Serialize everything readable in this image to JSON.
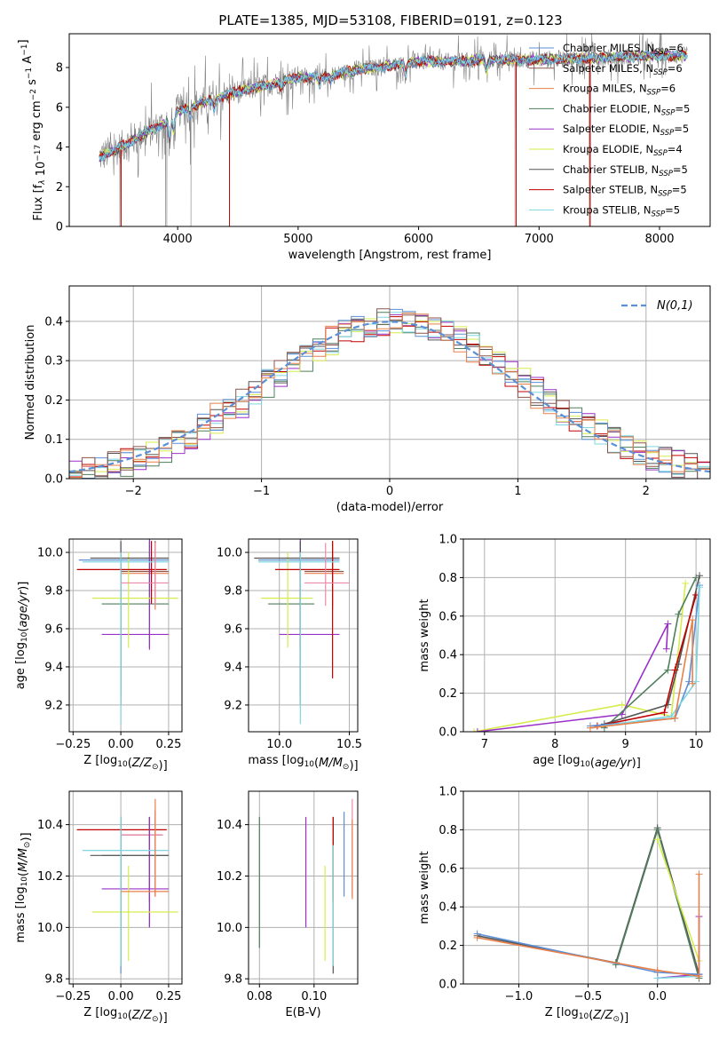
{
  "figure": {
    "title": "PLATE=1385, MJD=53108, FIBERID=0191, z=0.123"
  },
  "colors": {
    "chabrier_miles": "#5b8fd6",
    "salpeter_miles": "#8c564b",
    "kroupa_miles": "#e8804a",
    "chabrier_elodie": "#4f7f5c",
    "salpeter_elodie": "#9b30c8",
    "kroupa_elodie": "#d6ec4e",
    "chabrier_stelib": "#555555",
    "salpeter_stelib": "#c00000",
    "kroupa_stelib": "#7fd7e0",
    "data": "#808080",
    "grid": "#b0b0b0"
  },
  "chart_data": [
    {
      "id": "spectrum",
      "type": "line",
      "xlabel": "wavelength [Angstrom, rest frame]",
      "ylabel": "Flux [f_λ 10^-17 erg cm^-2 s^-1 A^-1]",
      "xlim": [
        3100,
        8420
      ],
      "ylim": [
        0,
        9.7
      ],
      "xticks": [
        4000,
        5000,
        6000,
        7000,
        8000
      ],
      "yticks": [
        0,
        2,
        4,
        6,
        8
      ],
      "grid": false,
      "legend_position": "right",
      "legend": [
        {
          "label": "Chabrier MILES, N",
          "sub": "SSP",
          "count": "=6",
          "color": "chabrier_miles"
        },
        {
          "label": "Salpeter MILES, N",
          "sub": "SSP",
          "count": "=6",
          "color": "salpeter_miles"
        },
        {
          "label": "Kroupa MILES, N",
          "sub": "SSP",
          "count": "=6",
          "color": "kroupa_miles"
        },
        {
          "label": "Chabrier ELODIE, N",
          "sub": "SSP",
          "count": "=5",
          "color": "chabrier_elodie"
        },
        {
          "label": "Salpeter ELODIE, N",
          "sub": "SSP",
          "count": "=5",
          "color": "salpeter_elodie"
        },
        {
          "label": "Kroupa ELODIE, N",
          "sub": "SSP",
          "count": "=4",
          "color": "kroupa_elodie"
        },
        {
          "label": "Chabrier STELIB, N",
          "sub": "SSP",
          "count": "=5",
          "color": "chabrier_stelib"
        },
        {
          "label": "Salpeter STELIB, N",
          "sub": "SSP",
          "count": "=5",
          "color": "salpeter_stelib"
        },
        {
          "label": "Kroupa STELIB, N",
          "sub": "SSP",
          "count": "=5",
          "color": "kroupa_stelib"
        }
      ],
      "continuum": [
        [
          3350,
          3.5
        ],
        [
          3500,
          3.9
        ],
        [
          3700,
          4.6
        ],
        [
          3900,
          5.2
        ],
        [
          4000,
          5.8
        ],
        [
          4200,
          6.2
        ],
        [
          4500,
          6.8
        ],
        [
          4800,
          7.2
        ],
        [
          5000,
          7.5
        ],
        [
          5200,
          7.5
        ],
        [
          5500,
          7.9
        ],
        [
          5800,
          8.1
        ],
        [
          6000,
          8.3
        ],
        [
          6300,
          8.3
        ],
        [
          6600,
          8.4
        ],
        [
          7000,
          8.4
        ],
        [
          7500,
          8.5
        ],
        [
          8000,
          8.6
        ],
        [
          8230,
          8.6
        ]
      ],
      "absorption_features": [
        [
          3934,
          -1.2
        ],
        [
          3968,
          -1.0
        ],
        [
          4102,
          -0.5
        ],
        [
          4305,
          -0.6
        ],
        [
          4861,
          -0.4
        ],
        [
          5175,
          -0.5
        ],
        [
          5270,
          -0.3
        ],
        [
          5893,
          -0.6
        ],
        [
          6563,
          -0.7
        ]
      ],
      "data_line_drops": [
        3520,
        3900,
        3910,
        4110,
        4430,
        6800,
        7430
      ],
      "model_drops": [
        3530,
        4430,
        6810,
        7420
      ]
    },
    {
      "id": "residuals",
      "type": "histogram",
      "xlabel": "(data-model)/error",
      "ylabel": "Normed distribution",
      "xlim": [
        -2.5,
        2.5
      ],
      "ylim": [
        0,
        0.49
      ],
      "xticks": [
        -2,
        -1,
        0,
        1,
        2
      ],
      "yticks": [
        0.0,
        0.1,
        0.2,
        0.3,
        0.4
      ],
      "grid": true,
      "bin_width": 0.1,
      "legend_position": "top-right",
      "reference_label": "N(0,1)",
      "reference_color": "#5b8fd6"
    },
    {
      "id": "age_vs_Z",
      "type": "errorbar",
      "xlabel": "Z [log10(Z/Z⊙)]",
      "ylabel": "age [log10(age/yr)]",
      "xlim": [
        -0.27,
        0.32
      ],
      "ylim": [
        9.06,
        10.07
      ],
      "xticks": [
        -0.25,
        0.0,
        0.25
      ],
      "yticks": [
        9.2,
        9.4,
        9.6,
        9.8,
        10.0
      ],
      "grid": true,
      "points": [
        {
          "x": 0.0,
          "xlo": -0.22,
          "xhi": 0.25,
          "y": 9.96,
          "ylo": 9.25,
          "yhi": 10.05,
          "color": "chabrier_miles"
        },
        {
          "x": 0.18,
          "xlo": 0.0,
          "xhi": 0.25,
          "y": 9.9,
          "ylo": 9.72,
          "yhi": 10.06,
          "color": "salpeter_miles"
        },
        {
          "x": 0.18,
          "xlo": 0.0,
          "xhi": 0.25,
          "y": 9.89,
          "ylo": 9.7,
          "yhi": 10.05,
          "color": "kroupa_miles"
        },
        {
          "x": 0.15,
          "xlo": -0.1,
          "xhi": 0.25,
          "y": 9.73,
          "ylo": 9.5,
          "yhi": 10.06,
          "color": "chabrier_elodie"
        },
        {
          "x": 0.15,
          "xlo": -0.1,
          "xhi": 0.25,
          "y": 9.57,
          "ylo": 9.49,
          "yhi": 10.07,
          "color": "salpeter_elodie"
        },
        {
          "x": 0.04,
          "xlo": -0.15,
          "xhi": 0.3,
          "y": 9.76,
          "ylo": 9.5,
          "yhi": 10.0,
          "color": "kroupa_elodie"
        },
        {
          "x": 0.0,
          "xlo": -0.16,
          "xhi": 0.25,
          "y": 9.97,
          "ylo": 9.2,
          "yhi": 10.06,
          "color": "chabrier_stelib"
        },
        {
          "x": 0.16,
          "xlo": -0.23,
          "xhi": 0.24,
          "y": 9.91,
          "ylo": 9.73,
          "yhi": 10.06,
          "color": "salpeter_stelib"
        },
        {
          "x": 0.0,
          "xlo": -0.2,
          "xhi": 0.25,
          "y": 9.95,
          "ylo": 9.1,
          "yhi": 10.0,
          "color": "kroupa_stelib"
        },
        {
          "x": 0.18,
          "xlo": 0.0,
          "xhi": 0.25,
          "y": 9.84,
          "ylo": 9.72,
          "yhi": 10.05,
          "color": "#ee88aa"
        }
      ]
    },
    {
      "id": "age_vs_mass",
      "type": "errorbar",
      "xlabel": "mass [log10(M/M⊙)]",
      "ylabel": "",
      "xlim": [
        9.78,
        10.56
      ],
      "ylim": [
        9.06,
        10.07
      ],
      "xticks": [
        10.0,
        10.5
      ],
      "yticks": [
        9.2,
        9.4,
        9.6,
        9.8,
        10.0
      ],
      "grid": true,
      "points": [
        {
          "x": 10.15,
          "xlo": 9.85,
          "xhi": 10.43,
          "y": 9.96,
          "ylo": 9.25,
          "yhi": 10.05,
          "color": "chabrier_miles"
        },
        {
          "x": 10.38,
          "xlo": 10.18,
          "xhi": 10.46,
          "y": 9.9,
          "ylo": 9.72,
          "yhi": 10.06,
          "color": "salpeter_miles"
        },
        {
          "x": 10.38,
          "xlo": 10.18,
          "xhi": 10.46,
          "y": 9.89,
          "ylo": 9.7,
          "yhi": 10.05,
          "color": "kroupa_miles"
        },
        {
          "x": 10.15,
          "xlo": 9.92,
          "xhi": 10.25,
          "y": 9.73,
          "ylo": 9.5,
          "yhi": 10.06,
          "color": "chabrier_elodie"
        },
        {
          "x": 10.15,
          "xlo": 10.0,
          "xhi": 10.43,
          "y": 9.57,
          "ylo": 9.49,
          "yhi": 10.07,
          "color": "salpeter_elodie"
        },
        {
          "x": 10.06,
          "xlo": 9.87,
          "xhi": 10.24,
          "y": 9.76,
          "ylo": 9.5,
          "yhi": 10.0,
          "color": "kroupa_elodie"
        },
        {
          "x": 10.15,
          "xlo": 9.82,
          "xhi": 10.43,
          "y": 9.97,
          "ylo": 9.2,
          "yhi": 10.06,
          "color": "chabrier_stelib"
        },
        {
          "x": 10.38,
          "xlo": 9.97,
          "xhi": 10.43,
          "y": 9.91,
          "ylo": 9.34,
          "yhi": 10.06,
          "color": "salpeter_stelib"
        },
        {
          "x": 10.15,
          "xlo": 9.85,
          "xhi": 10.43,
          "y": 9.95,
          "ylo": 9.1,
          "yhi": 10.0,
          "color": "kroupa_stelib"
        },
        {
          "x": 10.33,
          "xlo": 10.18,
          "xhi": 10.5,
          "y": 9.84,
          "ylo": 9.72,
          "yhi": 10.05,
          "color": "#ee88aa"
        }
      ]
    },
    {
      "id": "weight_vs_age",
      "type": "line",
      "xlabel": "age [log10(age/yr)]",
      "ylabel": "mass weight",
      "xlim": [
        6.7,
        10.2
      ],
      "ylim": [
        0.0,
        1.0
      ],
      "xticks": [
        7,
        8,
        9,
        10
      ],
      "yticks": [
        0.0,
        0.2,
        0.4,
        0.6,
        0.8,
        1.0
      ],
      "grid": true,
      "series": [
        {
          "color": "kroupa_elodie",
          "x": [
            6.85,
            8.95,
            9.65,
            9.85
          ],
          "y": [
            0.0,
            0.14,
            0.08,
            0.77
          ]
        },
        {
          "color": "salpeter_elodie",
          "x": [
            6.9,
            8.95,
            9.6,
            9.58
          ],
          "y": [
            0.0,
            0.09,
            0.56,
            0.43
          ]
        },
        {
          "color": "chabrier_elodie",
          "x": [
            8.7,
            9.6,
            9.75,
            10.0
          ],
          "y": [
            0.02,
            0.32,
            0.61,
            0.8
          ]
        },
        {
          "color": "chabrier_stelib",
          "x": [
            8.7,
            9.6,
            9.75,
            10.05
          ],
          "y": [
            0.04,
            0.14,
            0.35,
            0.81
          ]
        },
        {
          "color": "salpeter_stelib",
          "x": [
            8.6,
            9.55,
            9.7,
            10.0
          ],
          "y": [
            0.03,
            0.1,
            0.32,
            0.71
          ]
        },
        {
          "color": "chabrier_miles",
          "x": [
            8.5,
            9.7,
            9.9,
            10.05
          ],
          "y": [
            0.03,
            0.07,
            0.26,
            0.76
          ]
        },
        {
          "color": "kroupa_stelib",
          "x": [
            8.5,
            9.65,
            10.0,
            10.05
          ],
          "y": [
            0.02,
            0.08,
            0.26,
            0.75
          ]
        },
        {
          "color": "kroupa_miles",
          "x": [
            8.5,
            9.7,
            9.95,
            9.95
          ],
          "y": [
            0.02,
            0.07,
            0.58,
            0.25
          ]
        }
      ]
    },
    {
      "id": "mass_vs_Z",
      "type": "errorbar",
      "xlabel": "Z [log10(Z/Z⊙)]",
      "ylabel": "mass [log10(M/M⊙)]",
      "xlim": [
        -0.27,
        0.32
      ],
      "ylim": [
        9.78,
        10.53
      ],
      "xticks": [
        -0.25,
        0.0,
        0.25
      ],
      "yticks": [
        9.8,
        10.0,
        10.2,
        10.4
      ],
      "grid": true,
      "points": [
        {
          "x": 0.0,
          "xlo": -0.2,
          "xhi": 0.25,
          "y": 10.3,
          "ylo": 9.82,
          "yhi": 10.43,
          "color": "chabrier_miles"
        },
        {
          "x": 0.15,
          "xlo": -0.23,
          "xhi": 0.24,
          "y": 10.38,
          "ylo": 10.1,
          "yhi": 10.43,
          "color": "salpeter_stelib"
        },
        {
          "x": 0.18,
          "xlo": 0.0,
          "xhi": 0.22,
          "y": 10.36,
          "ylo": 10.12,
          "yhi": 10.45,
          "color": "salpeter_miles"
        },
        {
          "x": 0.18,
          "xlo": 0.0,
          "xhi": 0.22,
          "y": 10.36,
          "ylo": 10.12,
          "yhi": 10.46,
          "color": "#ee88aa"
        },
        {
          "x": 0.15,
          "xlo": -0.1,
          "xhi": 0.25,
          "y": 10.28,
          "ylo": 10.0,
          "yhi": 10.43,
          "color": "chabrier_elodie"
        },
        {
          "x": 0.15,
          "xlo": -0.1,
          "xhi": 0.25,
          "y": 10.15,
          "ylo": 10.0,
          "yhi": 10.43,
          "color": "salpeter_elodie"
        },
        {
          "x": 0.04,
          "xlo": -0.15,
          "xhi": 0.3,
          "y": 10.06,
          "ylo": 9.87,
          "yhi": 10.24,
          "color": "kroupa_elodie"
        },
        {
          "x": 0.0,
          "xlo": -0.16,
          "xhi": 0.25,
          "y": 10.28,
          "ylo": 9.85,
          "yhi": 10.43,
          "color": "chabrier_stelib"
        },
        {
          "x": 0.0,
          "xlo": -0.2,
          "xhi": 0.25,
          "y": 10.3,
          "ylo": 9.85,
          "yhi": 10.43,
          "color": "kroupa_stelib"
        },
        {
          "x": 0.18,
          "xlo": 0.0,
          "xhi": 0.25,
          "y": 10.14,
          "ylo": 10.12,
          "yhi": 10.5,
          "color": "kroupa_miles"
        }
      ]
    },
    {
      "id": "mass_vs_ebv",
      "type": "errorbar",
      "xlabel": "E(B-V)",
      "ylabel": "",
      "xlim": [
        0.076,
        0.116
      ],
      "ylim": [
        9.78,
        10.53
      ],
      "xticks": [
        0.08,
        0.1
      ],
      "yticks": [
        9.8,
        10.0,
        10.2,
        10.4
      ],
      "grid": true,
      "points": [
        {
          "x": 0.08,
          "y": 10.28,
          "ylo": 9.92,
          "yhi": 10.43,
          "color": "chabrier_elodie"
        },
        {
          "x": 0.097,
          "y": 10.15,
          "ylo": 10.0,
          "yhi": 10.43,
          "color": "salpeter_elodie"
        },
        {
          "x": 0.104,
          "y": 10.06,
          "ylo": 9.87,
          "yhi": 10.24,
          "color": "kroupa_elodie"
        },
        {
          "x": 0.107,
          "y": 10.28,
          "ylo": 9.82,
          "yhi": 10.43,
          "color": "chabrier_stelib"
        },
        {
          "x": 0.107,
          "y": 10.38,
          "ylo": 10.1,
          "yhi": 10.43,
          "color": "salpeter_stelib"
        },
        {
          "x": 0.107,
          "y": 10.3,
          "ylo": 9.85,
          "yhi": 10.32,
          "color": "kroupa_stelib"
        },
        {
          "x": 0.111,
          "y": 10.3,
          "ylo": 10.12,
          "yhi": 10.45,
          "color": "chabrier_miles"
        },
        {
          "x": 0.114,
          "y": 10.36,
          "ylo": 10.12,
          "yhi": 10.5,
          "color": "#ee88aa"
        },
        {
          "x": 0.114,
          "y": 10.3,
          "ylo": 10.11,
          "yhi": 10.42,
          "color": "kroupa_miles"
        }
      ]
    },
    {
      "id": "weight_vs_Z",
      "type": "line",
      "xlabel": "Z [log10(Z/Z⊙)]",
      "ylabel": "mass weight",
      "xlim": [
        -1.4,
        0.38
      ],
      "ylim": [
        0.0,
        1.0
      ],
      "xticks": [
        -1.0,
        -0.5,
        0.0
      ],
      "yticks": [
        0.0,
        0.2,
        0.4,
        0.6,
        0.8,
        1.0
      ],
      "grid": true,
      "series": [
        {
          "color": "chabrier_stelib",
          "x": [
            -1.3,
            -0.3,
            0.0,
            0.3,
            0.3
          ],
          "y": [
            0.25,
            0.11,
            0.81,
            0.05,
            0.03
          ]
        },
        {
          "color": "chabrier_elodie",
          "x": [
            -0.3,
            0.0,
            0.3
          ],
          "y": [
            0.1,
            0.8,
            0.03
          ]
        },
        {
          "color": "kroupa_elodie",
          "x": [
            0.0,
            0.3
          ],
          "y": [
            0.75,
            0.12
          ]
        },
        {
          "color": "salpeter_elodie",
          "x": [
            0.0,
            0.3,
            0.3
          ],
          "y": [
            0.03,
            0.05,
            0.35
          ]
        },
        {
          "color": "kroupa_stelib",
          "x": [
            0.0,
            0.3
          ],
          "y": [
            0.03,
            0.04
          ]
        },
        {
          "color": "chabrier_miles",
          "x": [
            -1.3,
            0.0,
            0.3
          ],
          "y": [
            0.26,
            0.06,
            0.05
          ]
        },
        {
          "color": "kroupa_miles",
          "x": [
            -1.3,
            0.0,
            0.3,
            0.3
          ],
          "y": [
            0.24,
            0.07,
            0.04,
            0.57
          ]
        }
      ]
    }
  ]
}
